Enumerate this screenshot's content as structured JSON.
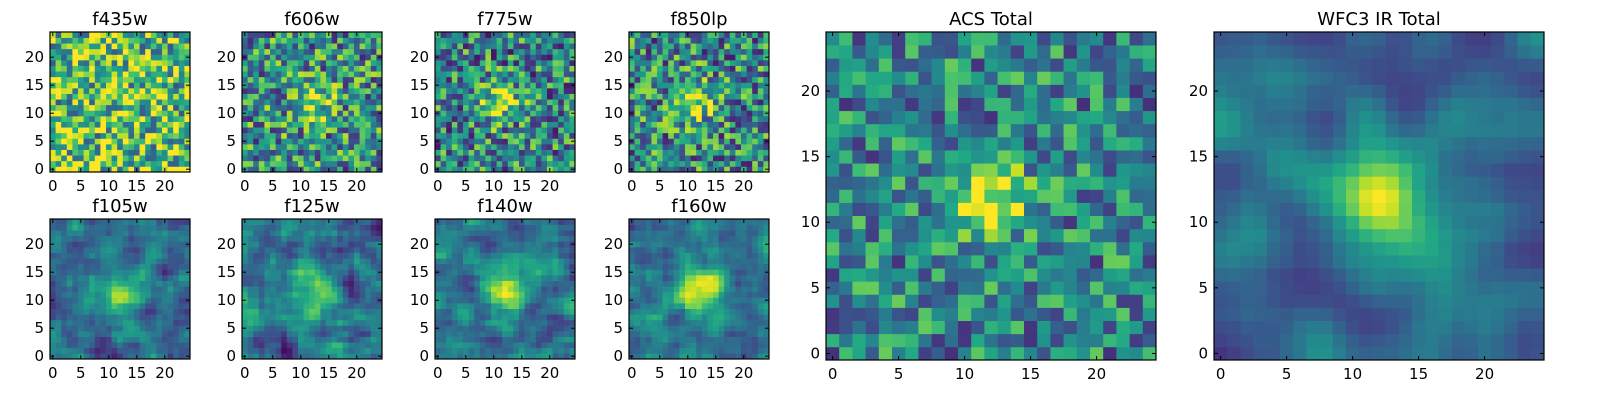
{
  "figure": {
    "panels": [
      {
        "id": "f435w",
        "title": "f435w",
        "xticks": [
          0,
          5,
          10,
          15,
          20
        ],
        "yticks": [
          0,
          5,
          10,
          15,
          20
        ],
        "size": 25,
        "seed": 11,
        "blob": 0.05,
        "sigma": 3.0,
        "center": [
          12,
          12
        ],
        "noise": 0.55,
        "smooth": 0,
        "bias": 0.35
      },
      {
        "id": "f606w",
        "title": "f606w",
        "xticks": [
          0,
          5,
          10,
          15,
          20
        ],
        "yticks": [
          0,
          5,
          10,
          15,
          20
        ],
        "size": 25,
        "seed": 23,
        "blob": 0.45,
        "sigma": 2.6,
        "center": [
          12,
          12
        ],
        "noise": 0.5,
        "smooth": 0,
        "bias": 0.15
      },
      {
        "id": "f775w",
        "title": "f775w",
        "xticks": [
          0,
          5,
          10,
          15,
          20
        ],
        "yticks": [
          0,
          5,
          10,
          15,
          20
        ],
        "size": 25,
        "seed": 37,
        "blob": 0.55,
        "sigma": 2.6,
        "center": [
          11,
          12
        ],
        "noise": 0.5,
        "smooth": 0,
        "bias": 0.1
      },
      {
        "id": "f850lp",
        "title": "f850lp",
        "xticks": [
          0,
          5,
          10,
          15,
          20
        ],
        "yticks": [
          0,
          5,
          10,
          15,
          20
        ],
        "size": 25,
        "seed": 41,
        "blob": 0.55,
        "sigma": 2.6,
        "center": [
          11,
          12
        ],
        "noise": 0.5,
        "smooth": 0,
        "bias": 0.12
      },
      {
        "id": "f105w",
        "title": "f105w",
        "xticks": [
          0,
          5,
          10,
          15,
          20
        ],
        "yticks": [
          0,
          5,
          10,
          15,
          20
        ],
        "size": 25,
        "seed": 53,
        "blob": 0.75,
        "sigma": 2.8,
        "center": [
          12,
          12
        ],
        "noise": 0.35,
        "smooth": 1,
        "bias": 0.0
      },
      {
        "id": "f125w",
        "title": "f125w",
        "xticks": [
          0,
          5,
          10,
          15,
          20
        ],
        "yticks": [
          0,
          5,
          10,
          15,
          20
        ],
        "size": 25,
        "seed": 67,
        "blob": 0.7,
        "sigma": 2.8,
        "center": [
          12,
          12
        ],
        "noise": 0.4,
        "smooth": 1,
        "bias": 0.0
      },
      {
        "id": "f140w",
        "title": "f140w",
        "xticks": [
          0,
          5,
          10,
          15,
          20
        ],
        "yticks": [
          0,
          5,
          10,
          15,
          20
        ],
        "size": 25,
        "seed": 71,
        "blob": 0.75,
        "sigma": 2.9,
        "center": [
          12,
          12
        ],
        "noise": 0.35,
        "smooth": 1,
        "bias": 0.05
      },
      {
        "id": "f160w",
        "title": "f160w",
        "xticks": [
          0,
          5,
          10,
          15,
          20
        ],
        "yticks": [
          0,
          5,
          10,
          15,
          20
        ],
        "size": 25,
        "seed": 83,
        "blob": 0.8,
        "sigma": 2.9,
        "center": [
          12,
          12
        ],
        "noise": 0.3,
        "smooth": 1,
        "bias": 0.05
      },
      {
        "id": "acs-total",
        "title": "ACS Total",
        "xticks": [
          0,
          5,
          10,
          15,
          20
        ],
        "yticks": [
          0,
          5,
          10,
          15,
          20
        ],
        "size": 25,
        "seed": 97,
        "blob": 0.75,
        "sigma": 2.0,
        "center": [
          12,
          12
        ],
        "noise": 0.4,
        "smooth": 0,
        "bias": 0.1
      },
      {
        "id": "wfc3-ir-total",
        "title": "WFC3 IR Total",
        "xticks": [
          0,
          5,
          10,
          15,
          20
        ],
        "yticks": [
          0,
          5,
          10,
          15,
          20
        ],
        "size": 25,
        "seed": 101,
        "blob": 0.85,
        "sigma": 2.7,
        "center": [
          12,
          12
        ],
        "noise": 0.25,
        "smooth": 2,
        "bias": 0.0
      }
    ],
    "colormap": "viridis"
  },
  "chart_data": [
    {
      "type": "heatmap",
      "title": "f435w",
      "xlim": [
        0,
        24
      ],
      "ylim": [
        0,
        24
      ],
      "xticks": [
        0,
        5,
        10,
        15,
        20
      ],
      "yticks": [
        0,
        5,
        10,
        15,
        20
      ],
      "grid": false
    },
    {
      "type": "heatmap",
      "title": "f606w",
      "xlim": [
        0,
        24
      ],
      "ylim": [
        0,
        24
      ],
      "xticks": [
        0,
        5,
        10,
        15,
        20
      ],
      "yticks": [
        0,
        5,
        10,
        15,
        20
      ],
      "grid": false
    },
    {
      "type": "heatmap",
      "title": "f775w",
      "xlim": [
        0,
        24
      ],
      "ylim": [
        0,
        24
      ],
      "xticks": [
        0,
        5,
        10,
        15,
        20
      ],
      "yticks": [
        0,
        5,
        10,
        15,
        20
      ],
      "grid": false
    },
    {
      "type": "heatmap",
      "title": "f850lp",
      "xlim": [
        0,
        24
      ],
      "ylim": [
        0,
        24
      ],
      "xticks": [
        0,
        5,
        10,
        15,
        20
      ],
      "yticks": [
        0,
        5,
        10,
        15,
        20
      ],
      "grid": false
    },
    {
      "type": "heatmap",
      "title": "f105w",
      "xlim": [
        0,
        24
      ],
      "ylim": [
        0,
        24
      ],
      "xticks": [
        0,
        5,
        10,
        15,
        20
      ],
      "yticks": [
        0,
        5,
        10,
        15,
        20
      ],
      "grid": false
    },
    {
      "type": "heatmap",
      "title": "f125w",
      "xlim": [
        0,
        24
      ],
      "ylim": [
        0,
        24
      ],
      "xticks": [
        0,
        5,
        10,
        15,
        20
      ],
      "yticks": [
        0,
        5,
        10,
        15,
        20
      ],
      "grid": false
    },
    {
      "type": "heatmap",
      "title": "f140w",
      "xlim": [
        0,
        24
      ],
      "ylim": [
        0,
        24
      ],
      "xticks": [
        0,
        5,
        10,
        15,
        20
      ],
      "yticks": [
        0,
        5,
        10,
        15,
        20
      ],
      "grid": false
    },
    {
      "type": "heatmap",
      "title": "f160w",
      "xlim": [
        0,
        24
      ],
      "ylim": [
        0,
        24
      ],
      "xticks": [
        0,
        5,
        10,
        15,
        20
      ],
      "yticks": [
        0,
        5,
        10,
        15,
        20
      ],
      "grid": false
    },
    {
      "type": "heatmap",
      "title": "ACS Total",
      "xlim": [
        0,
        24
      ],
      "ylim": [
        0,
        24
      ],
      "xticks": [
        0,
        5,
        10,
        15,
        20
      ],
      "yticks": [
        0,
        5,
        10,
        15,
        20
      ],
      "grid": false
    },
    {
      "type": "heatmap",
      "title": "WFC3 IR Total",
      "xlim": [
        0,
        24
      ],
      "ylim": [
        0,
        24
      ],
      "xticks": [
        0,
        5,
        10,
        15,
        20
      ],
      "yticks": [
        0,
        5,
        10,
        15,
        20
      ],
      "grid": false
    }
  ]
}
